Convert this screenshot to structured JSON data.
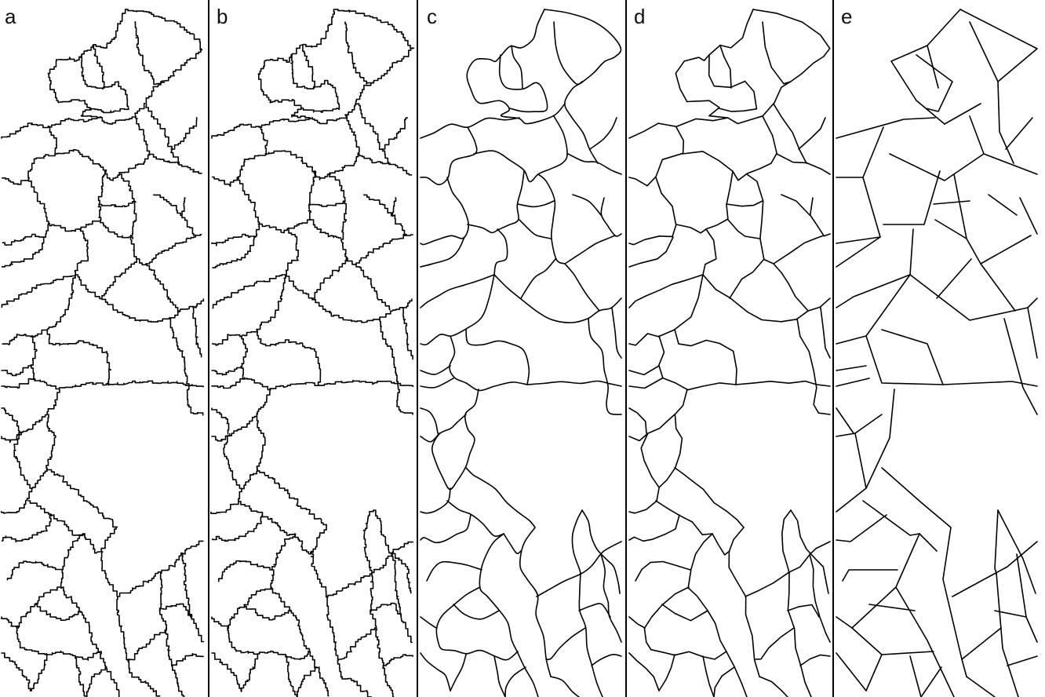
{
  "figure": {
    "panels": [
      {
        "label": "a",
        "style": "stepped"
      },
      {
        "label": "b",
        "style": "stepped"
      },
      {
        "label": "c",
        "style": "smoothed"
      },
      {
        "label": "d",
        "style": "simplified"
      },
      {
        "label": "e",
        "style": "polygonal"
      }
    ],
    "colors": {
      "background": "#ffffff",
      "line": "#000000",
      "text": "#111111"
    }
  }
}
